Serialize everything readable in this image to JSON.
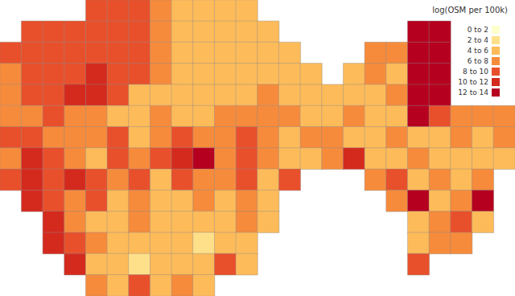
{
  "chart_data": {
    "type": "heatmap",
    "title": "log(OSM per 100k)",
    "tick_labels": false,
    "colorbar": {
      "bins": [
        0,
        2,
        4,
        6,
        8,
        10,
        12,
        14
      ],
      "labels": [
        "0 to 2",
        "2 to 4",
        "4 to 6",
        "6 to 8",
        "8 to 10",
        "10 to 12",
        "12 to 14"
      ],
      "colors": [
        "#ffffcc",
        "#ffe08a",
        "#fdbb5a",
        "#f68b3c",
        "#e8502c",
        "#d42a1e",
        "#b5001f"
      ]
    },
    "cells": [
      [
        null,
        null,
        null,
        null,
        9,
        9,
        9,
        7,
        5,
        5,
        5,
        5,
        null,
        null,
        null,
        null,
        null,
        null,
        null,
        null,
        null,
        null,
        null,
        null
      ],
      [
        null,
        9,
        9,
        9,
        9,
        9,
        9,
        7,
        5,
        5,
        5,
        5,
        5,
        null,
        null,
        null,
        null,
        null,
        null,
        13,
        13,
        null,
        null,
        null
      ],
      [
        9,
        9,
        9,
        9,
        9,
        9,
        9,
        7,
        5,
        5,
        5,
        5,
        5,
        5,
        null,
        null,
        null,
        7,
        7,
        13,
        13,
        null,
        null,
        null
      ],
      [
        7,
        9,
        9,
        9,
        11,
        9,
        9,
        7,
        5,
        5,
        5,
        5,
        5,
        5,
        5,
        null,
        5,
        7,
        5,
        13,
        13,
        null,
        null,
        null
      ],
      [
        7,
        9,
        9,
        11,
        11,
        9,
        5,
        5,
        5,
        5,
        5,
        5,
        7,
        5,
        5,
        5,
        5,
        5,
        7,
        13,
        13,
        null,
        null,
        null
      ],
      [
        7,
        7,
        9,
        7,
        7,
        5,
        5,
        7,
        5,
        5,
        7,
        7,
        7,
        7,
        5,
        5,
        7,
        5,
        5,
        13,
        9,
        7,
        7,
        7
      ],
      [
        9,
        9,
        7,
        7,
        7,
        9,
        5,
        7,
        9,
        7,
        7,
        9,
        7,
        5,
        7,
        7,
        5,
        5,
        7,
        5,
        5,
        7,
        5,
        7
      ],
      [
        7,
        11,
        9,
        7,
        5,
        9,
        7,
        9,
        11,
        13,
        7,
        9,
        7,
        5,
        5,
        7,
        11,
        5,
        5,
        7,
        5,
        5,
        5,
        5
      ],
      [
        9,
        11,
        9,
        11,
        9,
        7,
        9,
        5,
        9,
        7,
        7,
        9,
        5,
        9,
        null,
        null,
        null,
        7,
        9,
        5,
        7,
        5,
        7,
        null
      ],
      [
        null,
        11,
        9,
        7,
        9,
        5,
        7,
        5,
        5,
        7,
        5,
        7,
        5,
        null,
        null,
        null,
        null,
        null,
        7,
        13,
        5,
        7,
        13,
        null
      ],
      [
        null,
        null,
        11,
        7,
        5,
        5,
        7,
        5,
        5,
        5,
        5,
        7,
        5,
        null,
        null,
        null,
        null,
        null,
        null,
        5,
        7,
        9,
        5,
        null
      ],
      [
        null,
        null,
        11,
        9,
        7,
        5,
        5,
        5,
        5,
        3,
        5,
        5,
        null,
        null,
        null,
        null,
        null,
        null,
        null,
        5,
        7,
        7,
        null,
        null
      ],
      [
        null,
        null,
        null,
        11,
        5,
        5,
        3,
        5,
        5,
        5,
        9,
        5,
        null,
        null,
        null,
        null,
        null,
        null,
        null,
        9,
        null,
        null,
        null,
        null
      ],
      [
        null,
        null,
        null,
        null,
        7,
        5,
        9,
        5,
        7,
        5,
        null,
        null,
        null,
        null,
        null,
        null,
        null,
        null,
        null,
        null,
        null,
        null,
        null,
        null
      ]
    ]
  }
}
